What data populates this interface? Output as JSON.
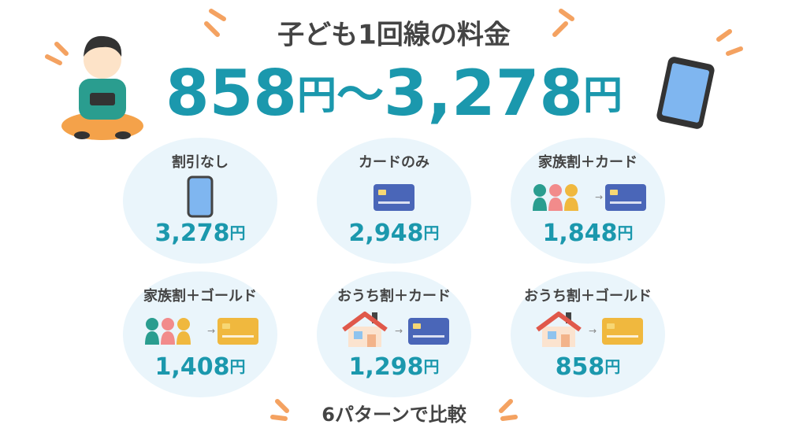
{
  "header": {
    "title": "子ども1回線の料金",
    "price_range": [
      "858",
      "円",
      "〜",
      "3,278",
      "円"
    ]
  },
  "cards": [
    {
      "label": "割引なし",
      "price": "3,278",
      "unit": "円"
    },
    {
      "label": "カードのみ",
      "price": "2,948",
      "unit": "円"
    },
    {
      "label": "家族割＋カード",
      "price": "1,848",
      "unit": "円"
    },
    {
      "label": "家族割＋ゴールド",
      "price": "1,408",
      "unit": "円"
    },
    {
      "label": "おうち割＋カード",
      "price": "1,298",
      "unit": "円"
    },
    {
      "label": "おうち割＋ゴールド",
      "price": "858",
      "unit": "円"
    }
  ],
  "footer": {
    "text": "6パターンで比較"
  }
}
